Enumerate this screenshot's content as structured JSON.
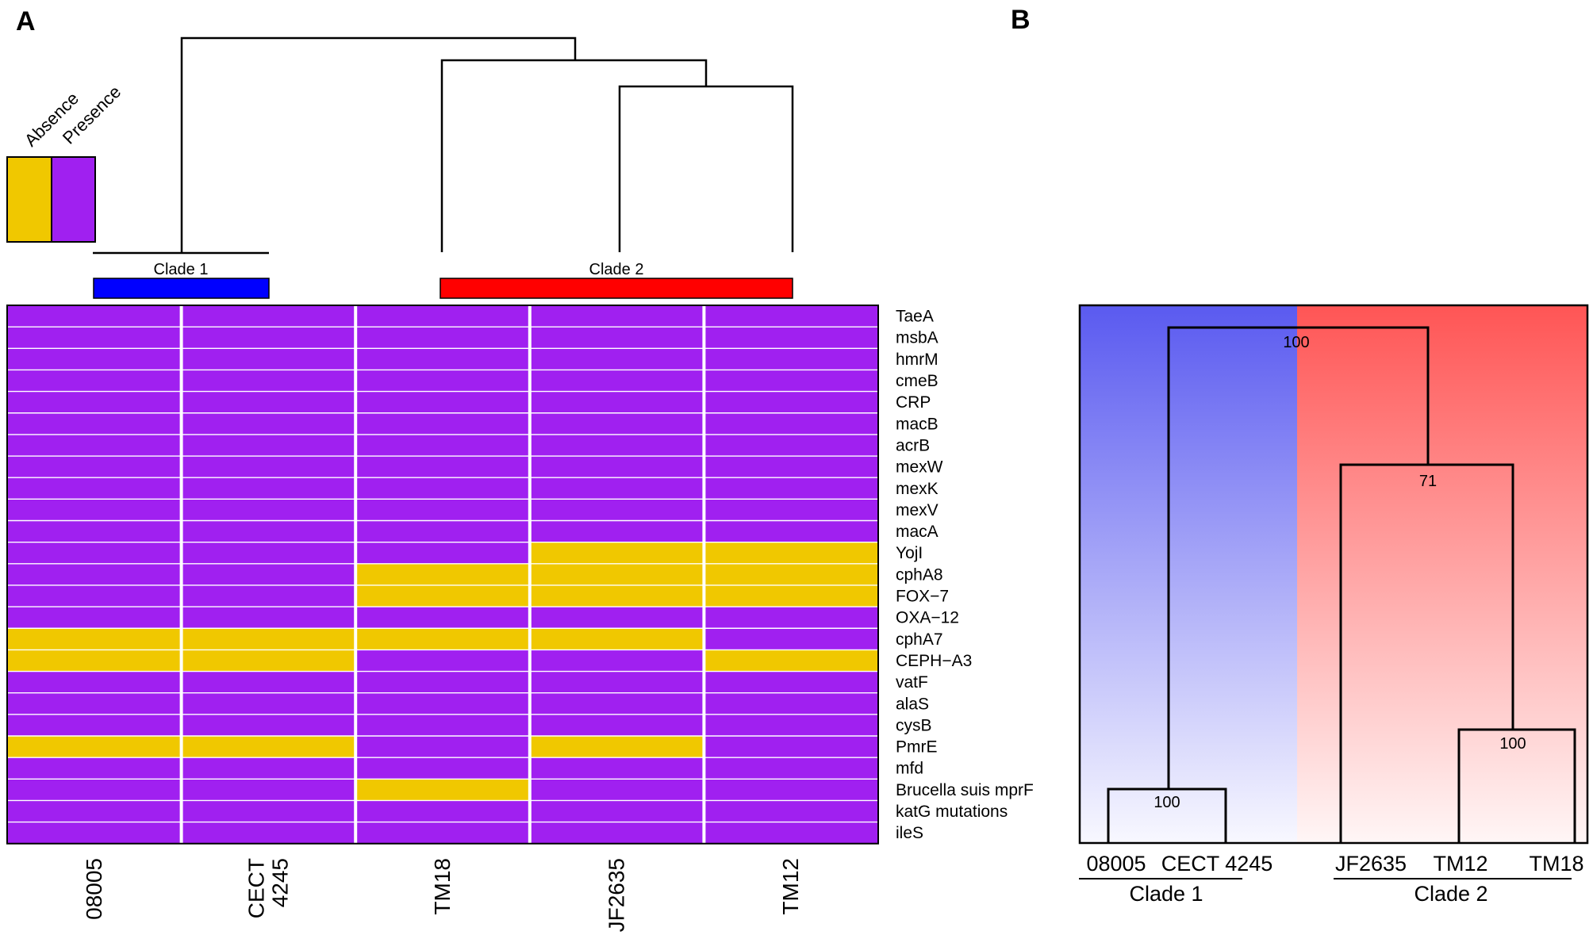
{
  "panel_a": {
    "label": "A",
    "legend": {
      "absence_label": "Absence",
      "presence_label": "Presence",
      "absence_color": "#F0C800",
      "presence_color": "#A020F0"
    },
    "clades": [
      {
        "label": "Clade 1",
        "color": "#0000FF"
      },
      {
        "label": "Clade 2",
        "color": "#FF0000"
      }
    ]
  },
  "panel_b": {
    "label": "B",
    "clade_colors": {
      "clade1": "#5A5AF0",
      "clade2": "#FF5555"
    },
    "bootstrap": {
      "root": "100",
      "clade2_inner": "71",
      "tm12_tm18": "100",
      "clade1": "100"
    },
    "leaves": [
      "08005",
      "CECT 4245",
      "JF2635",
      "TM12",
      "TM18"
    ],
    "clade_labels": [
      "Clade 1",
      "Clade 2"
    ]
  },
  "chart_data": {
    "type": "heatmap",
    "title": "",
    "strains": [
      [
        "08005"
      ],
      [
        "CECT",
        "4245"
      ],
      [
        "TM18"
      ],
      [
        "JF2635"
      ],
      [
        "TM12"
      ]
    ],
    "genes": [
      "TaeA",
      "msbA",
      "hmrM",
      "cmeB",
      "CRP",
      "macB",
      "acrB",
      "mexW",
      "mexK",
      "mexV",
      "macA",
      "YojI",
      "cphA8",
      "FOX−7",
      "OXA−12",
      "cphA7",
      "CEPH−A3",
      "vatF",
      "alaS",
      "cysB",
      "PmrE",
      "mfd",
      "Brucella suis mprF",
      "katG mutations",
      "ileS"
    ],
    "values_legend": {
      "0": "Absence",
      "1": "Presence"
    },
    "matrix": [
      [
        1,
        1,
        1,
        1,
        1
      ],
      [
        1,
        1,
        1,
        1,
        1
      ],
      [
        1,
        1,
        1,
        1,
        1
      ],
      [
        1,
        1,
        1,
        1,
        1
      ],
      [
        1,
        1,
        1,
        1,
        1
      ],
      [
        1,
        1,
        1,
        1,
        1
      ],
      [
        1,
        1,
        1,
        1,
        1
      ],
      [
        1,
        1,
        1,
        1,
        1
      ],
      [
        1,
        1,
        1,
        1,
        1
      ],
      [
        1,
        1,
        1,
        1,
        1
      ],
      [
        1,
        1,
        1,
        1,
        1
      ],
      [
        1,
        1,
        1,
        0,
        0
      ],
      [
        1,
        1,
        0,
        0,
        0
      ],
      [
        1,
        1,
        0,
        0,
        0
      ],
      [
        1,
        1,
        1,
        1,
        1
      ],
      [
        0,
        0,
        0,
        0,
        1
      ],
      [
        0,
        0,
        1,
        1,
        0
      ],
      [
        1,
        1,
        1,
        1,
        1
      ],
      [
        1,
        1,
        1,
        1,
        1
      ],
      [
        1,
        1,
        1,
        1,
        1
      ],
      [
        0,
        0,
        1,
        0,
        1
      ],
      [
        1,
        1,
        1,
        1,
        1
      ],
      [
        1,
        1,
        0,
        1,
        1
      ],
      [
        1,
        1,
        1,
        1,
        1
      ],
      [
        1,
        1,
        1,
        1,
        1
      ]
    ]
  }
}
